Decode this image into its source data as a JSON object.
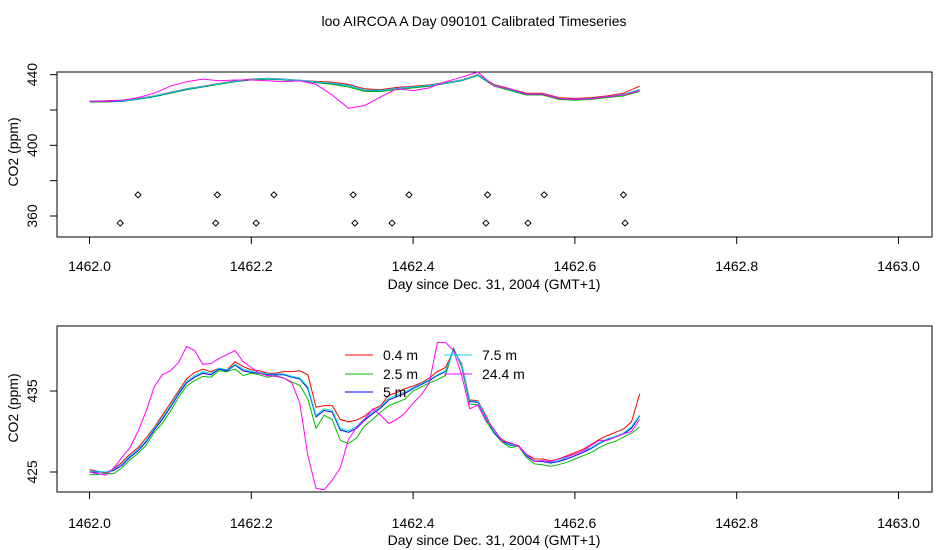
{
  "title": "loo AIRCOA A  Day 090101  Calibrated Timeseries",
  "chart_data": [
    {
      "type": "line",
      "xlabel": "Day since Dec. 31, 2004 (GMT+1)",
      "ylabel": "CO2 (ppm)",
      "xlim": [
        1462.0,
        1463.0
      ],
      "ylim": [
        350,
        445
      ],
      "xticks": [
        "1462.0",
        "1462.2",
        "1462.4",
        "1462.6",
        "1462.8",
        "1463.0"
      ],
      "yticks": [
        "360",
        "380",
        "400",
        "420",
        "440"
      ],
      "ytick_labels_shown": [
        "360",
        "400",
        "440"
      ],
      "x": [
        1462.0,
        1462.02,
        1462.04,
        1462.06,
        1462.08,
        1462.1,
        1462.12,
        1462.14,
        1462.16,
        1462.18,
        1462.2,
        1462.22,
        1462.24,
        1462.26,
        1462.28,
        1462.3,
        1462.32,
        1462.34,
        1462.36,
        1462.38,
        1462.4,
        1462.42,
        1462.44,
        1462.46,
        1462.48,
        1462.5,
        1462.52,
        1462.54,
        1462.56,
        1462.58,
        1462.6,
        1462.62,
        1462.64,
        1462.66,
        1462.68
      ],
      "series": [
        {
          "name": "0.4 m",
          "color": "#ff0000",
          "values": [
            425.0,
            425.2,
            425.5,
            426.5,
            428.0,
            430.0,
            432.0,
            433.5,
            435.0,
            436.5,
            437.5,
            438.0,
            437.5,
            436.8,
            436.2,
            435.8,
            434.5,
            432.0,
            431.5,
            432.8,
            433.5,
            434.2,
            435.5,
            437.0,
            440.0,
            434.5,
            432.0,
            429.5,
            429.5,
            427.0,
            426.5,
            427.0,
            428.0,
            429.5,
            433.5
          ]
        },
        {
          "name": "2.5 m",
          "color": "#00bb00",
          "values": [
            424.5,
            424.5,
            424.8,
            426.0,
            427.5,
            429.5,
            431.5,
            433.0,
            434.5,
            436.0,
            437.0,
            437.5,
            437.0,
            436.5,
            435.5,
            434.5,
            433.0,
            430.5,
            430.5,
            431.5,
            432.5,
            433.5,
            435.0,
            436.5,
            439.5,
            433.5,
            431.0,
            428.5,
            428.5,
            426.0,
            425.5,
            426.0,
            427.0,
            428.0,
            430.5
          ]
        },
        {
          "name": "5 m",
          "color": "#0000ff",
          "values": [
            424.8,
            424.8,
            425.0,
            426.2,
            427.8,
            429.8,
            431.8,
            433.2,
            434.8,
            436.2,
            437.2,
            437.8,
            437.2,
            436.7,
            435.8,
            435.0,
            433.8,
            431.2,
            431.0,
            432.2,
            433.0,
            433.8,
            435.2,
            436.8,
            439.7,
            434.0,
            431.5,
            429.0,
            429.0,
            426.5,
            426.0,
            426.5,
            427.5,
            428.8,
            431.5
          ]
        },
        {
          "name": "7.5 m",
          "color": "#00dddd",
          "values": [
            424.9,
            424.9,
            425.1,
            426.3,
            427.9,
            429.9,
            431.9,
            433.3,
            434.9,
            436.3,
            437.3,
            437.9,
            437.3,
            436.8,
            435.9,
            435.1,
            433.9,
            431.3,
            431.1,
            432.3,
            433.1,
            433.9,
            435.3,
            436.9,
            439.8,
            434.1,
            431.6,
            429.1,
            429.1,
            426.6,
            426.1,
            426.6,
            427.6,
            428.9,
            431.6
          ]
        },
        {
          "name": "24.4 m",
          "color": "#ff00ff",
          "values": [
            425.0,
            425.0,
            425.5,
            427.0,
            429.5,
            433.5,
            436.0,
            437.5,
            436.5,
            437.0,
            437.0,
            436.5,
            436.0,
            436.5,
            434.5,
            428.5,
            421.0,
            422.5,
            427.5,
            432.0,
            431.0,
            432.5,
            436.0,
            438.5,
            441.5,
            433.5,
            432.0,
            429.0,
            429.0,
            426.5,
            426.0,
            426.5,
            427.5,
            428.5,
            431.0
          ]
        }
      ],
      "markers": {
        "symbol": "diamond",
        "points": [
          {
            "x": 1462.06,
            "y": 372
          },
          {
            "x": 1462.158,
            "y": 372
          },
          {
            "x": 1462.228,
            "y": 372
          },
          {
            "x": 1462.326,
            "y": 372
          },
          {
            "x": 1462.395,
            "y": 372
          },
          {
            "x": 1462.492,
            "y": 372
          },
          {
            "x": 1462.562,
            "y": 372
          },
          {
            "x": 1462.66,
            "y": 372
          },
          {
            "x": 1462.038,
            "y": 356
          },
          {
            "x": 1462.156,
            "y": 356
          },
          {
            "x": 1462.206,
            "y": 356
          },
          {
            "x": 1462.328,
            "y": 356
          },
          {
            "x": 1462.374,
            "y": 356
          },
          {
            "x": 1462.49,
            "y": 356
          },
          {
            "x": 1462.542,
            "y": 356
          },
          {
            "x": 1462.662,
            "y": 356
          }
        ]
      }
    },
    {
      "type": "line",
      "xlabel": "Day since Dec. 31, 2004 (GMT+1)",
      "ylabel": "CO2 (ppm)",
      "xlim": [
        1462.0,
        1463.0
      ],
      "ylim": [
        422.5,
        443.0
      ],
      "xticks": [
        "1462.0",
        "1462.2",
        "1462.4",
        "1462.6",
        "1462.8",
        "1463.0"
      ],
      "yticks": [
        "425",
        "435"
      ],
      "legend": {
        "placement": "top-center",
        "entries": [
          "0.4 m",
          "2.5 m",
          "5 m",
          "7.5 m",
          "24.4 m"
        ]
      },
      "x": [
        1462.0,
        1462.01,
        1462.02,
        1462.03,
        1462.04,
        1462.05,
        1462.06,
        1462.07,
        1462.08,
        1462.09,
        1462.1,
        1462.11,
        1462.12,
        1462.13,
        1462.14,
        1462.15,
        1462.16,
        1462.17,
        1462.18,
        1462.19,
        1462.2,
        1462.21,
        1462.22,
        1462.23,
        1462.24,
        1462.25,
        1462.26,
        1462.27,
        1462.28,
        1462.29,
        1462.3,
        1462.31,
        1462.32,
        1462.33,
        1462.34,
        1462.35,
        1462.36,
        1462.37,
        1462.38,
        1462.39,
        1462.4,
        1462.41,
        1462.42,
        1462.43,
        1462.44,
        1462.45,
        1462.46,
        1462.47,
        1462.48,
        1462.49,
        1462.5,
        1462.51,
        1462.52,
        1462.53,
        1462.54,
        1462.55,
        1462.56,
        1462.57,
        1462.58,
        1462.59,
        1462.6,
        1462.61,
        1462.62,
        1462.63,
        1462.64,
        1462.65,
        1462.66,
        1462.67,
        1462.68
      ],
      "series": [
        {
          "name": "0.4 m",
          "color": "#ff0000",
          "values": [
            425.3,
            425.1,
            424.9,
            425.4,
            426.2,
            427.2,
            428.0,
            429.2,
            430.5,
            432.0,
            433.5,
            435.0,
            436.5,
            437.3,
            437.7,
            437.4,
            437.8,
            437.6,
            438.6,
            438.0,
            437.6,
            437.5,
            437.2,
            437.2,
            437.4,
            437.4,
            437.5,
            437.0,
            433.0,
            433.2,
            433.2,
            431.5,
            431.2,
            431.4,
            431.9,
            432.7,
            433.2,
            434.5,
            434.8,
            435.3,
            435.6,
            436.0,
            436.6,
            437.4,
            437.9,
            440.0,
            438.4,
            433.9,
            433.8,
            432.0,
            430.0,
            429.0,
            428.5,
            428.3,
            427.2,
            426.6,
            426.6,
            426.4,
            426.6,
            427.0,
            427.4,
            427.8,
            428.4,
            429.0,
            429.5,
            429.9,
            430.3,
            431.2,
            434.6
          ]
        },
        {
          "name": "2.5 m",
          "color": "#00bb00",
          "values": [
            424.7,
            424.7,
            424.8,
            424.8,
            425.5,
            426.5,
            427.3,
            428.3,
            429.9,
            431.0,
            432.5,
            434.2,
            435.6,
            436.3,
            436.8,
            436.7,
            437.5,
            437.4,
            437.7,
            436.9,
            437.2,
            437.0,
            436.7,
            436.9,
            436.6,
            436.1,
            435.7,
            434.0,
            430.4,
            432.0,
            431.5,
            428.9,
            428.5,
            429.2,
            430.7,
            431.5,
            432.4,
            433.2,
            433.6,
            434.0,
            435.0,
            435.5,
            436.0,
            436.4,
            436.9,
            440.3,
            438.0,
            433.4,
            433.3,
            431.3,
            429.8,
            428.7,
            428.0,
            428.2,
            426.8,
            426.0,
            425.9,
            425.7,
            425.9,
            426.2,
            426.6,
            427.0,
            427.4,
            428.0,
            428.5,
            428.8,
            429.3,
            429.8,
            430.5
          ]
        },
        {
          "name": "5 m",
          "color": "#0000ff",
          "values": [
            425.0,
            425.0,
            425.0,
            425.2,
            425.8,
            426.8,
            427.6,
            428.7,
            430.2,
            431.5,
            433.0,
            434.6,
            436.0,
            436.7,
            437.2,
            437.0,
            437.7,
            437.5,
            438.2,
            437.5,
            437.3,
            437.2,
            437.0,
            437.0,
            437.0,
            436.7,
            436.5,
            435.3,
            431.8,
            432.6,
            432.4,
            430.2,
            429.9,
            430.4,
            431.4,
            432.2,
            432.9,
            433.9,
            434.3,
            434.7,
            435.3,
            435.8,
            436.3,
            436.9,
            437.4,
            440.1,
            438.2,
            433.7,
            433.6,
            431.7,
            429.9,
            428.8,
            428.3,
            428.2,
            427.0,
            426.3,
            426.3,
            426.1,
            426.3,
            426.6,
            427.0,
            427.4,
            427.9,
            428.5,
            429.0,
            429.3,
            429.7,
            430.4,
            431.9
          ]
        },
        {
          "name": "7.5 m",
          "color": "#00dddd",
          "values": [
            425.1,
            425.1,
            425.0,
            425.3,
            426.0,
            427.0,
            427.8,
            428.9,
            430.4,
            431.7,
            433.2,
            434.8,
            436.2,
            436.9,
            437.4,
            437.2,
            437.8,
            437.6,
            438.3,
            437.7,
            437.4,
            437.3,
            437.1,
            437.1,
            437.1,
            436.8,
            436.6,
            435.5,
            432.0,
            432.8,
            432.6,
            430.4,
            430.1,
            430.6,
            431.6,
            432.4,
            433.1,
            434.1,
            434.5,
            434.9,
            435.4,
            435.9,
            436.4,
            437.0,
            437.5,
            440.0,
            438.3,
            433.8,
            433.7,
            431.8,
            430.0,
            428.9,
            428.4,
            428.2,
            427.1,
            426.4,
            426.4,
            426.2,
            426.4,
            426.8,
            427.2,
            427.6,
            428.0,
            428.6,
            429.1,
            429.4,
            429.8,
            430.6,
            432.0
          ]
        },
        {
          "name": "24.4 m",
          "color": "#ff00ff",
          "values": [
            425.0,
            424.8,
            424.6,
            425.5,
            426.8,
            428.0,
            430.0,
            432.5,
            435.5,
            437.0,
            437.5,
            438.5,
            440.5,
            440.0,
            438.3,
            438.4,
            439.0,
            439.5,
            440.0,
            438.6,
            437.9,
            437.2,
            436.9,
            436.8,
            436.6,
            436.0,
            433.5,
            427.0,
            423.0,
            422.8,
            424.0,
            425.5,
            429.0,
            430.5,
            431.5,
            432.8,
            432.0,
            431.0,
            431.5,
            432.3,
            433.5,
            434.5,
            436.0,
            441.0,
            441.0,
            440.0,
            437.0,
            432.8,
            433.3,
            431.4,
            430.3,
            428.8,
            428.6,
            428.2,
            427.2,
            426.3,
            426.4,
            426.3,
            426.6,
            426.9,
            427.2,
            427.6,
            428.3,
            428.9,
            428.9,
            429.3,
            429.7,
            430.0,
            431.5
          ]
        }
      ]
    }
  ]
}
